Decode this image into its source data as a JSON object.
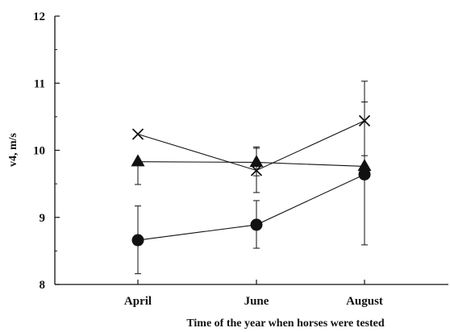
{
  "chart_data": {
    "type": "line",
    "title": "",
    "xlabel": "Time of the year when horses were tested",
    "ylabel": "v4, m/s",
    "categories": [
      "April",
      "June",
      "August"
    ],
    "ylim": [
      8,
      12
    ],
    "yticks": [
      "8",
      "9",
      "10",
      "11",
      "12"
    ],
    "grid": false,
    "series": [
      {
        "marker": "x-cross",
        "values": [
          10.24,
          9.7,
          10.44
        ],
        "err_low": [
          null,
          9.37,
          9.92
        ],
        "err_high": [
          null,
          10.03,
          11.03
        ]
      },
      {
        "marker": "triangle",
        "values": [
          9.83,
          9.82,
          9.76
        ],
        "err_low": [
          9.49,
          9.62,
          null
        ],
        "err_high": [
          null,
          10.05,
          null
        ]
      },
      {
        "marker": "circle",
        "values": [
          8.66,
          8.89,
          9.64
        ],
        "err_low": [
          8.16,
          8.54,
          8.59
        ],
        "err_high": [
          9.17,
          9.25,
          10.72
        ]
      }
    ],
    "colors": {
      "ink": "#111111",
      "background": "#ffffff"
    }
  }
}
